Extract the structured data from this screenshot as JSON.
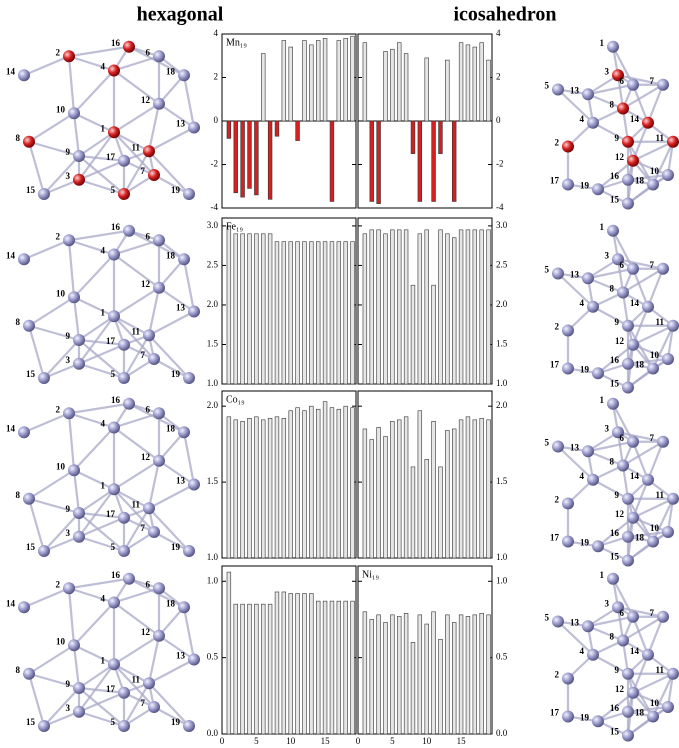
{
  "header": {
    "left": "hexagonal",
    "right": "icosahedron"
  },
  "hexagonal_clusters": [
    {
      "labels": [
        "1",
        "2",
        "3",
        "4",
        "5",
        "6",
        "7",
        "8",
        "9",
        "10",
        "11",
        "12",
        "13",
        "14",
        "15",
        "16",
        "17",
        "18",
        "19"
      ]
    },
    {
      "labels": [
        "1",
        "2",
        "3",
        "4",
        "5",
        "6",
        "7",
        "8",
        "9",
        "10",
        "11",
        "12",
        "13",
        "14",
        "15",
        "16",
        "17",
        "18",
        "19"
      ]
    },
    {
      "labels": [
        "1",
        "2",
        "3",
        "4",
        "5",
        "6",
        "7",
        "8",
        "9",
        "10",
        "11",
        "12",
        "13",
        "14",
        "15",
        "16",
        "17",
        "18",
        "19"
      ]
    },
    {
      "labels": [
        "1",
        "2",
        "3",
        "4",
        "5",
        "6",
        "7",
        "8",
        "9",
        "10",
        "11",
        "12",
        "13",
        "14",
        "15",
        "16",
        "17",
        "18",
        "19"
      ]
    }
  ],
  "icosahedron_clusters": [
    {
      "labels": [
        "1",
        "2",
        "3",
        "4",
        "5",
        "6",
        "7",
        "8",
        "9",
        "10",
        "11",
        "12",
        "13",
        "14",
        "15",
        "16",
        "17",
        "18",
        "19"
      ]
    },
    {
      "labels": [
        "1",
        "2",
        "3",
        "4",
        "5",
        "6",
        "7",
        "8",
        "9",
        "10",
        "11",
        "12",
        "13",
        "14",
        "15",
        "16",
        "17",
        "18",
        "19"
      ]
    },
    {
      "labels": [
        "1",
        "2",
        "3",
        "4",
        "5",
        "6",
        "7",
        "8",
        "9",
        "10",
        "11",
        "12",
        "13",
        "14",
        "15",
        "16",
        "17",
        "18",
        "19"
      ]
    },
    {
      "labels": [
        "1",
        "2",
        "3",
        "4",
        "5",
        "6",
        "7",
        "8",
        "9",
        "10",
        "11",
        "12",
        "13",
        "14",
        "15",
        "16",
        "17",
        "18",
        "19"
      ]
    }
  ],
  "chart_data": [
    {
      "type": "bar",
      "title": "Mn₁₉",
      "x": [
        1,
        2,
        3,
        4,
        5,
        6,
        7,
        8,
        9,
        10,
        11,
        12,
        13,
        14,
        15,
        16,
        17,
        18,
        19
      ],
      "values": [
        -0.8,
        -3.3,
        -3.5,
        -3.1,
        -3.4,
        3.1,
        -3.6,
        -0.7,
        3.7,
        3.4,
        -0.9,
        3.7,
        3.5,
        3.7,
        3.8,
        -3.7,
        3.7,
        3.8,
        3.9
      ],
      "color": "#e6e6e6",
      "negative_color": "#d42020",
      "xlim": [
        0,
        19.5
      ],
      "ylim": [
        -4,
        4
      ],
      "yticks": [
        -4,
        -2,
        0,
        2,
        4
      ]
    },
    {
      "type": "bar",
      "x": [
        1,
        2,
        3,
        4,
        5,
        6,
        7,
        8,
        9,
        10,
        11,
        12,
        13,
        14,
        15,
        16,
        17,
        18,
        19
      ],
      "values": [
        3.6,
        -3.7,
        -3.8,
        3.2,
        3.3,
        3.6,
        3.1,
        -1.5,
        -3.7,
        2.9,
        -3.7,
        -1.5,
        2.8,
        -3.7,
        3.6,
        3.5,
        3.4,
        3.6,
        2.8
      ],
      "color": "#e6e6e6",
      "negative_color": "#d42020",
      "xlim": [
        0,
        19.5
      ],
      "ylim": [
        -4,
        4
      ],
      "yticks": [
        -4,
        -2,
        0,
        2,
        4
      ]
    },
    {
      "type": "bar",
      "title": "Fe₁₉",
      "x": [
        1,
        2,
        3,
        4,
        5,
        6,
        7,
        8,
        9,
        10,
        11,
        12,
        13,
        14,
        15,
        16,
        17,
        18,
        19
      ],
      "values": [
        3.0,
        2.9,
        2.9,
        2.9,
        2.9,
        2.9,
        2.9,
        2.8,
        2.8,
        2.8,
        2.8,
        2.8,
        2.8,
        2.8,
        2.8,
        2.8,
        2.8,
        2.8,
        2.8
      ],
      "color": "#e6e6e6",
      "negative_color": "#d42020",
      "xlim": [
        0,
        19.5
      ],
      "ylim": [
        1,
        3.1
      ],
      "yticks": [
        {
          "value": 1,
          "label": "1.0"
        },
        1.5,
        {
          "value": 2,
          "label": "2.0"
        },
        2.5,
        {
          "value": 3,
          "label": "3.0"
        }
      ]
    },
    {
      "type": "bar",
      "x": [
        1,
        2,
        3,
        4,
        5,
        6,
        7,
        8,
        9,
        10,
        11,
        12,
        13,
        14,
        15,
        16,
        17,
        18,
        19
      ],
      "values": [
        2.9,
        2.95,
        2.95,
        2.9,
        2.95,
        2.95,
        2.95,
        2.25,
        2.9,
        2.95,
        2.25,
        2.95,
        2.9,
        2.85,
        2.95,
        2.95,
        2.95,
        2.95,
        2.95
      ],
      "color": "#e6e6e6",
      "negative_color": "#d42020",
      "xlim": [
        0,
        19.5
      ],
      "ylim": [
        1,
        3.1
      ],
      "yticks": [
        {
          "value": 1,
          "label": "1.0"
        },
        1.5,
        {
          "value": 2,
          "label": "2.0"
        },
        2.5,
        {
          "value": 3,
          "label": "3.0"
        }
      ]
    },
    {
      "type": "bar",
      "title": "Co₁₉",
      "x": [
        1,
        2,
        3,
        4,
        5,
        6,
        7,
        8,
        9,
        10,
        11,
        12,
        13,
        14,
        15,
        16,
        17,
        18,
        19
      ],
      "values": [
        1.93,
        1.91,
        1.9,
        1.92,
        1.93,
        1.91,
        1.92,
        1.93,
        1.92,
        1.97,
        1.99,
        1.97,
        2.0,
        1.98,
        2.03,
        1.99,
        1.98,
        2.0,
        1.99
      ],
      "color": "#e6e6e6",
      "negative_color": "#d42020",
      "xlim": [
        0,
        19.5
      ],
      "ylim": [
        1,
        2.1
      ],
      "yticks": [
        {
          "value": 1,
          "label": "1.0"
        },
        1.5,
        {
          "value": 2,
          "label": "2.0"
        }
      ]
    },
    {
      "type": "bar",
      "x": [
        1,
        2,
        3,
        4,
        5,
        6,
        7,
        8,
        9,
        10,
        11,
        12,
        13,
        14,
        15,
        16,
        17,
        18,
        19
      ],
      "values": [
        1.85,
        1.78,
        1.86,
        1.8,
        1.9,
        1.91,
        1.93,
        1.6,
        1.97,
        1.65,
        1.9,
        1.6,
        1.84,
        1.85,
        1.91,
        1.93,
        1.91,
        1.92,
        1.91
      ],
      "color": "#e6e6e6",
      "negative_color": "#d42020",
      "xlim": [
        0,
        19.5
      ],
      "ylim": [
        1,
        2.1
      ],
      "yticks": [
        {
          "value": 1,
          "label": "1.0"
        },
        1.5,
        {
          "value": 2,
          "label": "2.0"
        }
      ]
    },
    {
      "type": "bar",
      "x": [
        1,
        2,
        3,
        4,
        5,
        6,
        7,
        8,
        9,
        10,
        11,
        12,
        13,
        14,
        15,
        16,
        17,
        18,
        19
      ],
      "values": [
        1.06,
        0.85,
        0.85,
        0.85,
        0.85,
        0.85,
        0.85,
        0.93,
        0.93,
        0.92,
        0.92,
        0.92,
        0.92,
        0.87,
        0.87,
        0.87,
        0.87,
        0.87,
        0.87
      ],
      "color": "#e6e6e6",
      "negative_color": "#d42020",
      "xlim": [
        0,
        19.5
      ],
      "ylim": [
        0,
        1.1
      ],
      "yticks": [
        {
          "value": 0,
          "label": "0.0"
        },
        0.5,
        {
          "value": 1,
          "label": "1.0"
        }
      ],
      "xticks": [
        0,
        5,
        10,
        15
      ]
    },
    {
      "type": "bar",
      "title": "Ni₁₉",
      "x": [
        1,
        2,
        3,
        4,
        5,
        6,
        7,
        8,
        9,
        10,
        11,
        12,
        13,
        14,
        15,
        16,
        17,
        18,
        19
      ],
      "values": [
        0.8,
        0.75,
        0.78,
        0.73,
        0.78,
        0.77,
        0.79,
        0.6,
        0.78,
        0.72,
        0.8,
        0.62,
        0.78,
        0.73,
        0.78,
        0.77,
        0.78,
        0.79,
        0.78
      ],
      "color": "#e6e6e6",
      "negative_color": "#d42020",
      "xlim": [
        0,
        19.5
      ],
      "ylim": [
        0,
        1.1
      ],
      "yticks": [
        {
          "value": 0,
          "label": "0.0"
        },
        0.5,
        {
          "value": 1,
          "label": "1.0"
        }
      ],
      "xticks": [
        0,
        5,
        10,
        15
      ]
    }
  ]
}
